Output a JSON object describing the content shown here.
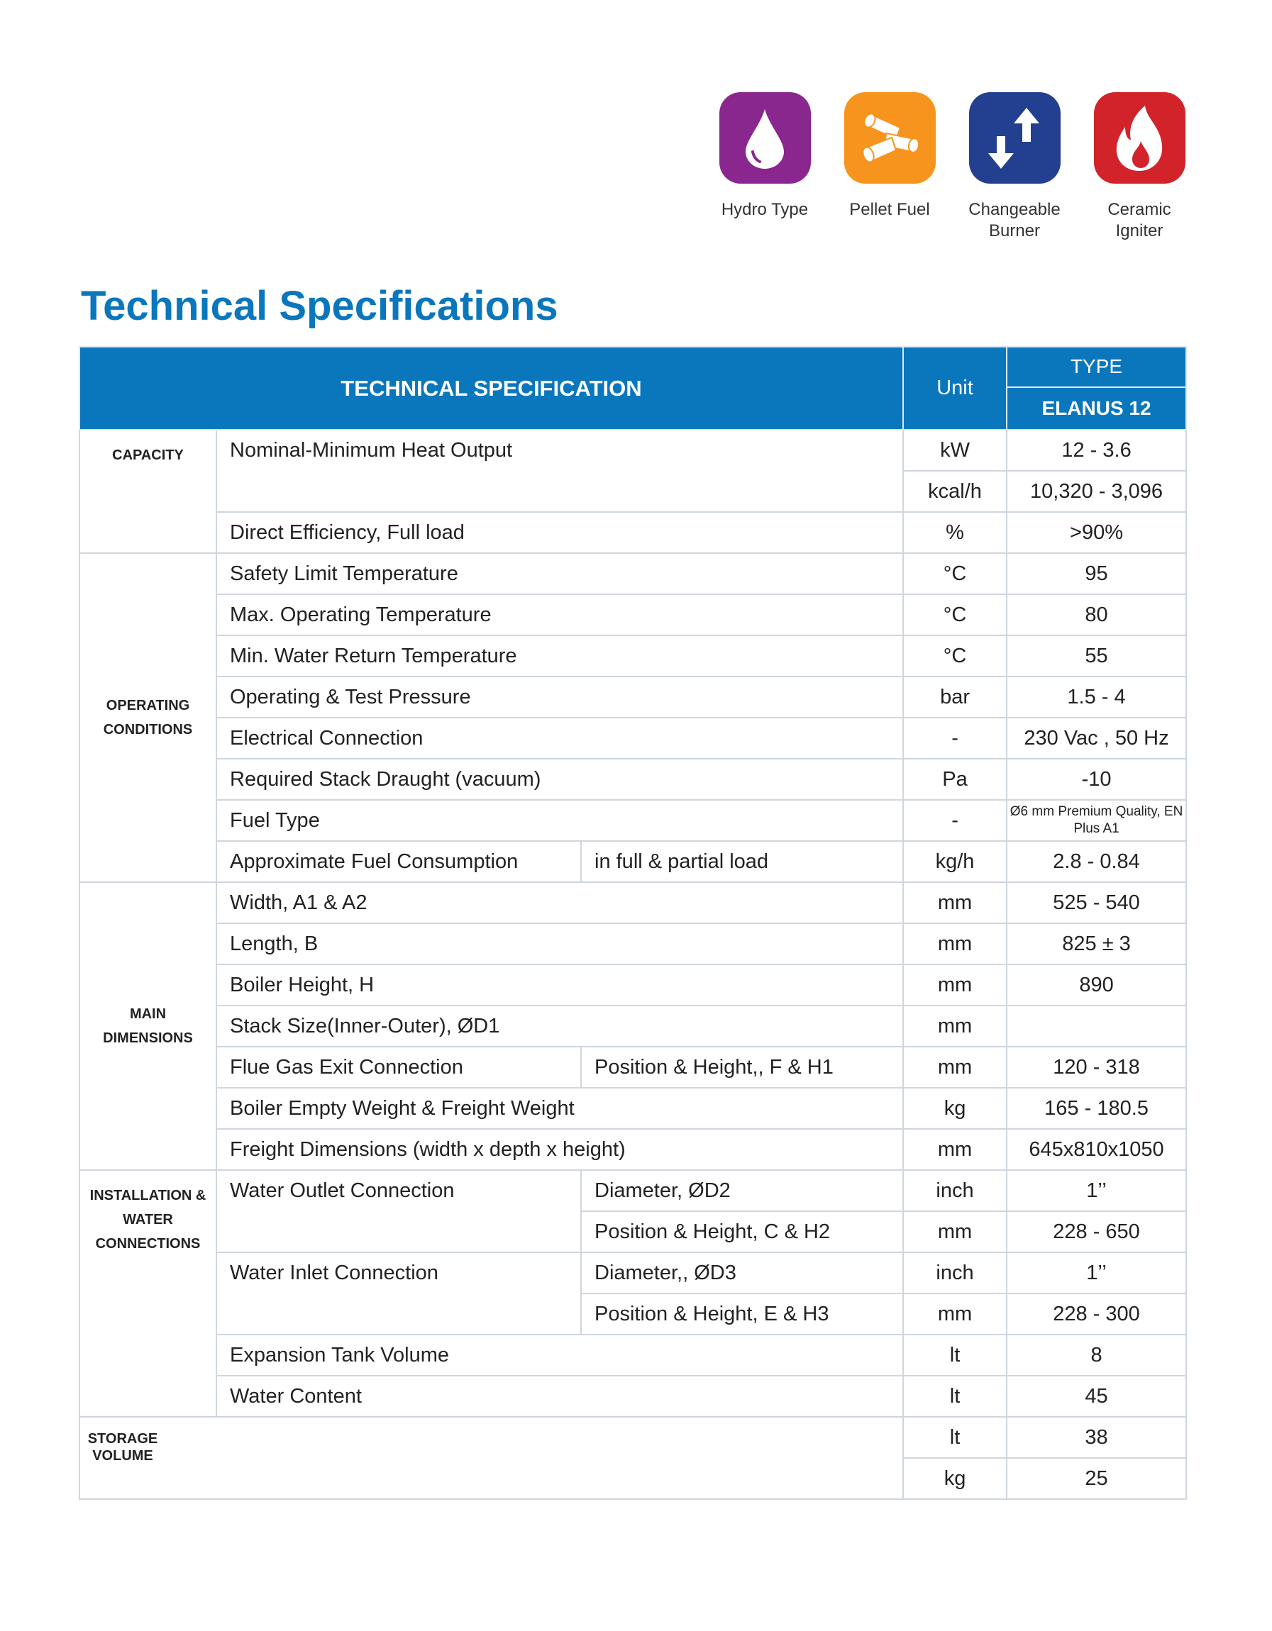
{
  "features": [
    {
      "label": "Hydro Type",
      "icon": "water-drop-icon",
      "color": "#8a278f"
    },
    {
      "label": "Pellet Fuel",
      "icon": "pellets-icon",
      "color": "#f7941d"
    },
    {
      "label": "Changeable Burner",
      "icon": "arrows-up-down-icon",
      "color": "#233f8f"
    },
    {
      "label": "Ceramic Igniter",
      "icon": "flame-icon",
      "color": "#d2232a"
    }
  ],
  "title": "Technical Specifications",
  "table": {
    "header": {
      "spec": "TECHNICAL SPECIFICATION",
      "unit": "Unit",
      "type": "TYPE",
      "model": "ELANUS 12"
    },
    "header_color": "#0a77bd",
    "groups": [
      {
        "category": "CAPACITY",
        "rows": [
          {
            "label": "Nominal-Minimum  Heat Output",
            "rowspan": 2,
            "unit": "kW",
            "value": "12 - 3.6"
          },
          {
            "unit": "kcal/h",
            "value": "10,320 - 3,096"
          },
          {
            "label": "Direct Efficiency, Full load",
            "unit": "%",
            "value": ">90%"
          }
        ]
      },
      {
        "category": "OPERATING CONDITIONS",
        "rows": [
          {
            "label": "Safety Limit Temperature",
            "unit": "°C",
            "value": "95"
          },
          {
            "label": "Max. Operating Temperature",
            "unit": "°C",
            "value": "80"
          },
          {
            "label": "Min. Water Return Temperature",
            "unit": "°C",
            "value": "55"
          },
          {
            "label": "Operating & Test  Pressure",
            "unit": "bar",
            "value": "1.5 - 4"
          },
          {
            "label": "Electrical Connection",
            "unit": "-",
            "value": "230 Vac , 50 Hz"
          },
          {
            "label": "Required Stack Draught (vacuum)",
            "unit": "Pa",
            "value": "-10"
          },
          {
            "label": "Fuel Type",
            "unit": "-",
            "value": "Ø6 mm Premium Quality, EN Plus A1"
          },
          {
            "label": "Approximate Fuel Consumption",
            "sub": "in full & partial load",
            "unit": "kg/h",
            "value": "2.8 - 0.84"
          }
        ]
      },
      {
        "category": "MAIN DIMENSIONS",
        "rows": [
          {
            "label": "Width, A1 & A2",
            "unit": "mm",
            "value": "525 - 540"
          },
          {
            "label": "Length, B",
            "unit": "mm",
            "value": "825 ± 3"
          },
          {
            "label": "Boiler Height, H",
            "unit": "mm",
            "value": "890"
          },
          {
            "label": "Stack Size(Inner-Outer), ØD1",
            "unit": "mm",
            "value": ""
          },
          {
            "label": "Flue Gas Exit Connection",
            "sub": "Position & Height,, F & H1",
            "unit": "mm",
            "value": "120 - 318"
          },
          {
            "label": "Boiler Empty Weight & Freight Weight",
            "unit": "kg",
            "value": "165 - 180.5"
          },
          {
            "label": "Freight Dimensions (width x depth x height)",
            "unit": "mm",
            "value": "645x810x1050"
          }
        ]
      },
      {
        "category": "INSTALLATION & WATER CONNECTIONS",
        "rows": [
          {
            "label": "Water Outlet Connection",
            "rowspan": 2,
            "sub": "Diameter, ØD2",
            "unit": "inch",
            "value": "1’’"
          },
          {
            "sub": "Position & Height, C & H2",
            "unit": "mm",
            "value": "228 - 650"
          },
          {
            "label": "Water Inlet Connection",
            "rowspan": 2,
            "sub": "Diameter,, ØD3",
            "unit": "inch",
            "value": "1’’"
          },
          {
            "sub": "Position & Height, E & H3",
            "unit": "mm",
            "value": "228 - 300"
          },
          {
            "label": "Expansion Tank Volume",
            "unit": "lt",
            "value": "8"
          },
          {
            "label": "Water Content",
            "unit": "lt",
            "value": "45"
          }
        ]
      },
      {
        "category": "STORAGE VOLUME",
        "merged": true,
        "rows": [
          {
            "unit": "lt",
            "value": "38"
          },
          {
            "unit": "kg",
            "value": "25"
          }
        ]
      }
    ]
  }
}
